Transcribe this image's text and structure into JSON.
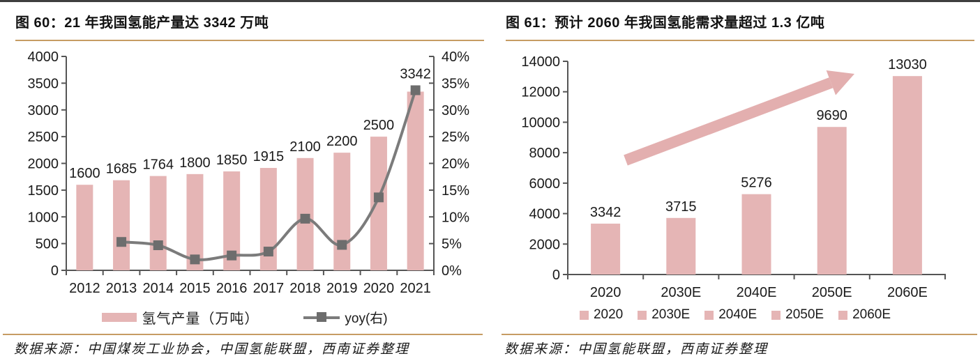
{
  "page": {
    "background": "#FFFFFF",
    "top_border_color": "#3F3F3F"
  },
  "colors": {
    "bar_fill": "#E5B5B5",
    "arrow_fill": "#E3AFAF",
    "line_stroke": "#7B7B7B",
    "marker_fill": "#6D6D6D",
    "axis": "#555555",
    "text": "#1A1A1A",
    "rule_gold": "#C69C63"
  },
  "chart_data": [
    {
      "type": "bar+line",
      "title": "图 60：21 年我国氢能产量达 3342 万吨",
      "xlabel": "",
      "ylabel": "",
      "categories": [
        "2012",
        "2013",
        "2014",
        "2015",
        "2016",
        "2017",
        "2018",
        "2019",
        "2020",
        "2021"
      ],
      "series": [
        {
          "name": "氢气产量（万吨）",
          "type": "bar",
          "axis": "left",
          "values": [
            1600,
            1685,
            1764,
            1800,
            1850,
            1915,
            2100,
            2200,
            2500,
            3342
          ]
        },
        {
          "name": "yoy(右)",
          "type": "line",
          "axis": "right",
          "values": [
            null,
            5.31,
            4.69,
            2.04,
            2.78,
            3.51,
            9.66,
            4.76,
            13.64,
            33.68
          ]
        }
      ],
      "bar_labels": [
        "1600",
        "1685",
        "1764",
        "1800",
        "1850",
        "1915",
        "2100",
        "2200",
        "2500",
        "3342"
      ],
      "left_axis": {
        "min": 0,
        "max": 4000,
        "step": 500
      },
      "right_axis": {
        "min": 0,
        "max": 40,
        "step": 5,
        "suffix": "%"
      },
      "grid": false,
      "legend_position": "bottom",
      "source": "数据来源：中国煤炭工业协会，中国氢能联盟，西南证券整理"
    },
    {
      "type": "bar",
      "title": "图 61：预计 2060 年我国氢能需求量超过 1.3 亿吨",
      "xlabel": "",
      "ylabel": "",
      "categories": [
        "2020",
        "2030E",
        "2040E",
        "2050E",
        "2060E"
      ],
      "values": [
        3342,
        3715,
        5276,
        9690,
        13030
      ],
      "bar_labels": [
        "3342",
        "3715",
        "5276",
        "9690",
        "13030"
      ],
      "y_axis": {
        "min": 0,
        "max": 14000,
        "step": 2000
      },
      "legend": [
        "2020",
        "2030E",
        "2040E",
        "2050E",
        "2060E"
      ],
      "annotation": {
        "shape": "up-right-trend-arrow"
      },
      "grid": false,
      "legend_position": "bottom",
      "source": "数据来源：中国氢能联盟，西南证券整理"
    }
  ]
}
